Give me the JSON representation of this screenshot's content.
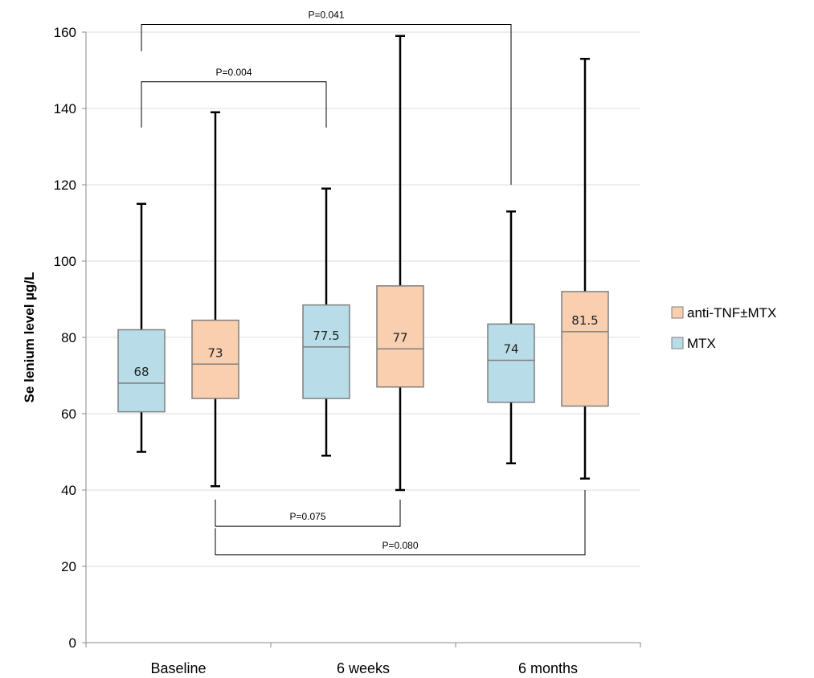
{
  "chart_data": {
    "type": "boxplot",
    "ylabel": "Se lenium level   µg/L",
    "ylim": [
      0,
      160
    ],
    "yticks": [
      0,
      20,
      40,
      60,
      80,
      100,
      120,
      140,
      160
    ],
    "grid": true,
    "legend_position": "right",
    "categories": [
      "Baseline",
      "6 weeks",
      "6 months"
    ],
    "series": [
      {
        "name": "MTX",
        "color": "#b8dde8",
        "boxes": [
          {
            "category": "Baseline",
            "min": 50,
            "q1": 60.5,
            "median": 68,
            "q3": 82,
            "max": 115,
            "median_label": "68"
          },
          {
            "category": "6 weeks",
            "min": 49,
            "q1": 64,
            "median": 77.5,
            "q3": 88.5,
            "max": 119,
            "median_label": "77.5"
          },
          {
            "category": "6 months",
            "min": 47,
            "q1": 63,
            "median": 74,
            "q3": 83.5,
            "max": 113,
            "median_label": "74"
          }
        ]
      },
      {
        "name": "anti-TNF±MTX",
        "color": "#f9cfb0",
        "boxes": [
          {
            "category": "Baseline",
            "min": 41,
            "q1": 64,
            "median": 73,
            "q3": 84.5,
            "max": 139,
            "median_label": "73"
          },
          {
            "category": "6 weeks",
            "min": 40,
            "q1": 67,
            "median": 77,
            "q3": 93.5,
            "max": 159,
            "median_label": "77"
          },
          {
            "category": "6 months",
            "min": 43,
            "q1": 62,
            "median": 81.5,
            "q3": 92,
            "max": 153,
            "median_label": "81.5"
          }
        ]
      }
    ],
    "comparisons": [
      {
        "label": "P=0.041",
        "from": {
          "series": 0,
          "category": 0
        },
        "to": {
          "series": 0,
          "category": 2
        },
        "side": "top",
        "level": 162,
        "start": 155,
        "end": 120
      },
      {
        "label": "P=0.004",
        "from": {
          "series": 0,
          "category": 0
        },
        "to": {
          "series": 0,
          "category": 1
        },
        "side": "top",
        "level": 147,
        "start": 135,
        "end": 135
      },
      {
        "label": "P=0.075",
        "from": {
          "series": 1,
          "category": 0
        },
        "to": {
          "series": 1,
          "category": 1
        },
        "side": "bottom",
        "level": 30.5,
        "start": 37.5,
        "end": 37.5
      },
      {
        "label": "P=0.080",
        "from": {
          "series": 1,
          "category": 0
        },
        "to": {
          "series": 1,
          "category": 2
        },
        "side": "bottom",
        "level": 23,
        "start": 30,
        "end": 40
      }
    ]
  }
}
